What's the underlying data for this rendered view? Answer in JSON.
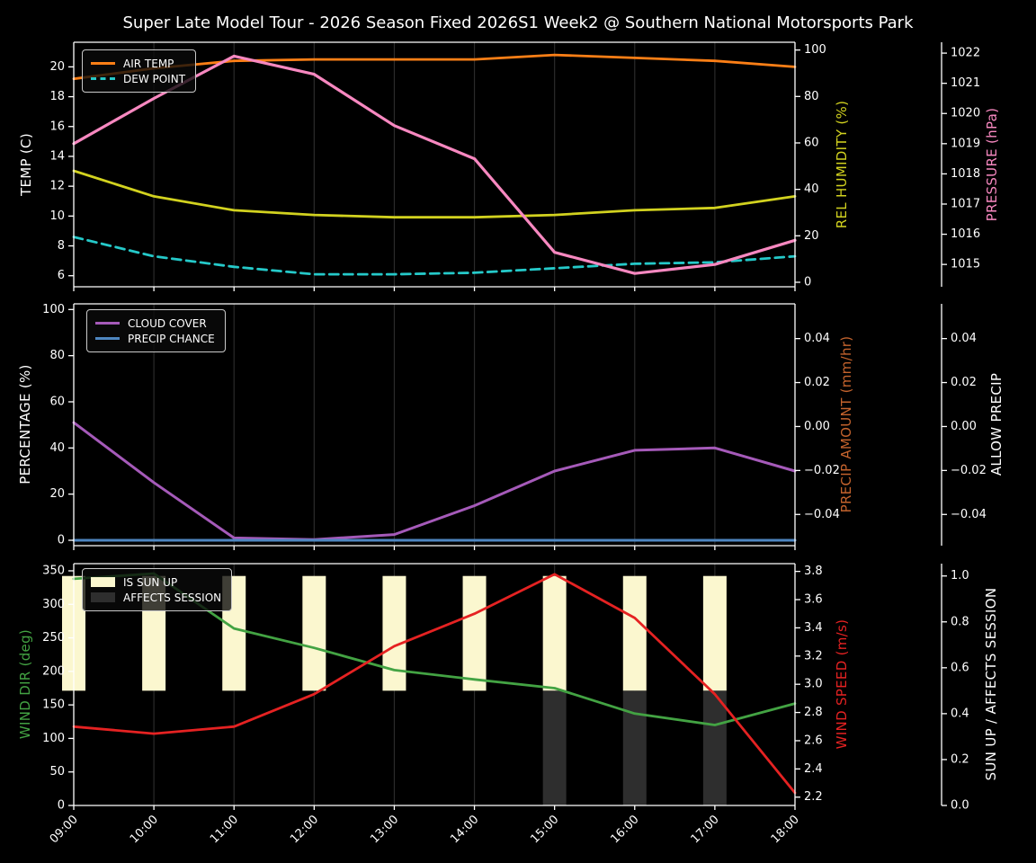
{
  "title": "Super Late Model Tour - 2026 Season Fixed 2026S1 Week2 @ Southern National Motorsports Park",
  "x_hours": [
    9,
    10,
    11,
    12,
    13,
    14,
    15,
    16,
    17,
    18
  ],
  "x_labels": [
    "09:00",
    "10:00",
    "11:00",
    "12:00",
    "13:00",
    "14:00",
    "15:00",
    "16:00",
    "17:00",
    "18:00"
  ],
  "grid_color": "#2b2b2b",
  "spine_color": "#ffffff",
  "tick_label_color": "#ffffff",
  "background_color": "#000000",
  "chart_data": [
    {
      "type": "line",
      "grid": "vertical-only",
      "legend_position": "upper-left",
      "series": [
        {
          "name": "AIR TEMP",
          "axis": "left",
          "color": "#fd7f16",
          "style": "solid",
          "lw": 2.8,
          "values": [
            19.2,
            19.9,
            20.4,
            20.5,
            20.5,
            20.5,
            20.8,
            20.6,
            20.4,
            20.0
          ]
        },
        {
          "name": "DEW POINT",
          "axis": "left",
          "color": "#25c9c9",
          "style": "dashed",
          "lw": 2.8,
          "values": [
            8.6,
            7.3,
            6.6,
            6.1,
            6.1,
            6.2,
            6.5,
            6.8,
            6.9,
            7.3
          ]
        },
        {
          "name": "REL HUMIDITY",
          "axis": "right1",
          "color": "#d2d21f",
          "style": "solid",
          "lw": 2.8,
          "values": [
            48,
            37,
            31,
            29,
            28,
            28,
            29,
            31,
            32,
            37
          ]
        },
        {
          "name": "PRESSURE",
          "axis": "right2",
          "color": "#f788c0",
          "style": "solid",
          "lw": 3.2,
          "values": [
            1019.0,
            1020.5,
            1021.9,
            1021.3,
            1019.6,
            1018.5,
            1015.4,
            1014.7,
            1015.0,
            1015.8
          ]
        }
      ],
      "axes": {
        "left": {
          "label": "TEMP (C)",
          "color": "#ffffff",
          "range": [
            5.26,
            21.65
          ],
          "ticks": [
            6,
            8,
            10,
            12,
            14,
            16,
            18,
            20
          ],
          "tick_labels": [
            "6",
            "8",
            "10",
            "12",
            "14",
            "16",
            "18",
            "20"
          ]
        },
        "right1": {
          "label": "REL HUMIDITY (%)",
          "color": "#d2d21f",
          "range": [
            -1.94,
            103.35
          ],
          "ticks": [
            0,
            20,
            40,
            60,
            80,
            100
          ],
          "tick_labels": [
            "0",
            "20",
            "40",
            "60",
            "80",
            "100"
          ]
        },
        "right2": {
          "label": "PRESSURE (hPa)",
          "color": "#f788c0",
          "range": [
            1014.26,
            1022.36
          ],
          "ticks": [
            1015,
            1016,
            1017,
            1018,
            1019,
            1020,
            1021,
            1022
          ],
          "tick_labels": [
            "1015",
            "1016",
            "1017",
            "1018",
            "1019",
            "1020",
            "1021",
            "1022"
          ]
        }
      }
    },
    {
      "type": "line",
      "grid": "vertical-only",
      "legend_position": "upper-left",
      "series": [
        {
          "name": "CLOUD COVER",
          "axis": "left",
          "color": "#a55ab9",
          "style": "solid",
          "lw": 3.0,
          "values": [
            51,
            25,
            1,
            0.3,
            2.5,
            15,
            30,
            39,
            40,
            30
          ]
        },
        {
          "name": "PRECIP CHANCE",
          "axis": "left",
          "color": "#4e86c0",
          "style": "solid",
          "lw": 3.0,
          "values": [
            0,
            0,
            0,
            0,
            0,
            0,
            0,
            0,
            0,
            0
          ]
        }
      ],
      "axes": {
        "left": {
          "label": "PERCENTAGE (%)",
          "color": "#ffffff",
          "range": [
            -2.34,
            102.46
          ],
          "ticks": [
            0,
            20,
            40,
            60,
            80,
            100
          ],
          "tick_labels": [
            "0",
            "20",
            "40",
            "60",
            "80",
            "100"
          ]
        },
        "right1": {
          "label": "PRECIP AMOUNT (mm/hr)",
          "color": "#c4632d",
          "range": [
            -0.0542,
            0.0558
          ],
          "ticks": [
            -0.04,
            -0.02,
            0,
            0.02,
            0.04
          ],
          "tick_labels": [
            "−0.04",
            "−0.02",
            "0.00",
            "0.02",
            "0.04"
          ]
        },
        "right2": {
          "label": "ALLOW PRECIP",
          "color": "#ffffff",
          "range": [
            -0.0542,
            0.0558
          ],
          "ticks": [
            -0.04,
            -0.02,
            0,
            0.02,
            0.04
          ],
          "tick_labels": [
            "−0.04",
            "−0.02",
            "0.00",
            "0.02",
            "0.04"
          ]
        }
      }
    },
    {
      "type": "line-with-bars",
      "grid": "vertical-only",
      "legend_position": "upper-left",
      "bars": [
        {
          "name": "IS SUN UP",
          "axis": "right2",
          "color": "#fbf7cf",
          "hours": [
            9,
            10,
            11,
            12,
            13,
            14,
            15,
            16,
            17
          ],
          "from": 0.5,
          "to": 1.0
        },
        {
          "name": "AFFECTS SESSION",
          "axis": "right2",
          "color": "#2e2e2e",
          "hours": [
            15,
            16,
            17
          ],
          "from": 0.0,
          "to": 0.5
        }
      ],
      "series": [
        {
          "name": "WIND DIR",
          "axis": "left",
          "color": "#43a343",
          "style": "solid",
          "lw": 2.8,
          "values": [
            338,
            346,
            264,
            235,
            202,
            188,
            175,
            137,
            120,
            152
          ]
        },
        {
          "name": "WIND SPEED",
          "axis": "right1",
          "color": "#e52222",
          "style": "solid",
          "lw": 2.8,
          "values": [
            2.7,
            2.65,
            2.7,
            2.93,
            3.27,
            3.5,
            3.78,
            3.47,
            2.93,
            2.23
          ]
        }
      ],
      "axes": {
        "left": {
          "label": "WIND DIR (deg)",
          "color": "#43a343",
          "range": [
            0,
            360.7
          ],
          "ticks": [
            0,
            50,
            100,
            150,
            200,
            250,
            300,
            350
          ],
          "tick_labels": [
            "0",
            "50",
            "100",
            "150",
            "200",
            "250",
            "300",
            "350"
          ]
        },
        "right1": {
          "label": "WIND SPEED (m/s)",
          "color": "#e52222",
          "range": [
            2.141,
            3.855
          ],
          "ticks": [
            2.2,
            2.4,
            2.6,
            2.8,
            3.0,
            3.2,
            3.4,
            3.6,
            3.8
          ],
          "tick_labels": [
            "2.2",
            "2.4",
            "2.6",
            "2.8",
            "3.0",
            "3.2",
            "3.4",
            "3.6",
            "3.8"
          ]
        },
        "right2": {
          "label": "SUN UP / AFFECTS SESSION",
          "color": "#ffffff",
          "range": [
            0,
            1.0537
          ],
          "ticks": [
            0,
            0.2,
            0.4,
            0.6,
            0.8,
            1.0
          ],
          "tick_labels": [
            "0.0",
            "0.2",
            "0.4",
            "0.6",
            "0.8",
            "1.0"
          ]
        }
      }
    }
  ]
}
